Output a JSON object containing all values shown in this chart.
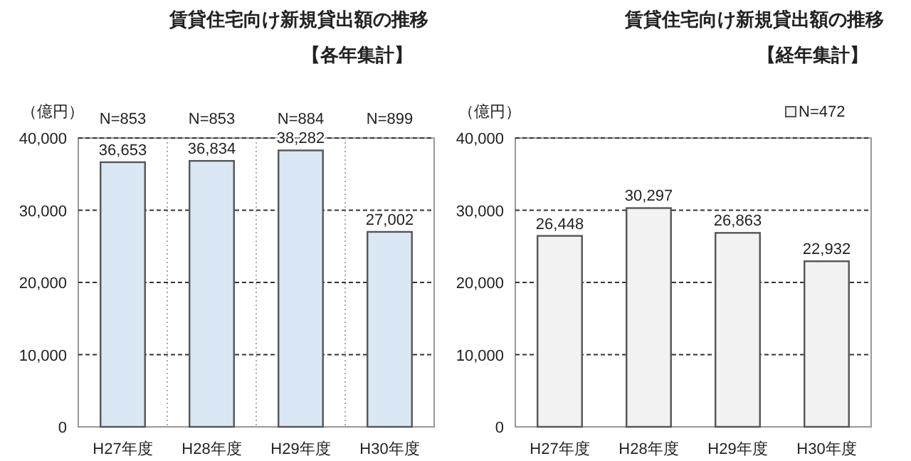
{
  "chart_data": [
    {
      "type": "bar",
      "title": "賃貸住宅向け新規貸出額の推移",
      "subtitle": "【各年集計】",
      "ylabel": "（億円）",
      "categories": [
        "H27年度",
        "H28年度",
        "H29年度",
        "H30年度"
      ],
      "series": [
        {
          "color": "#dae8f5",
          "values": [
            36653,
            36834,
            38282,
            27002
          ],
          "value_labels": [
            "36,653",
            "36,834",
            "38,282",
            "27,002"
          ]
        }
      ],
      "ylim": [
        0,
        40000
      ],
      "yticks": [
        0,
        {
          "value": 10000,
          "label": "10,000"
        },
        {
          "value": 20000,
          "label": "20,000"
        },
        {
          "value": 30000,
          "label": "30,000"
        },
        {
          "value": 40000,
          "label": "40,000"
        }
      ],
      "grid": true,
      "annotations": [
        "N=853",
        "N=853",
        "N=884",
        "N=899"
      ]
    },
    {
      "type": "bar",
      "title": "賃貸住宅向け新規貸出額の推移",
      "subtitle": "【経年集計】",
      "ylabel": "（億円）",
      "categories": [
        "H27年度",
        "H28年度",
        "H29年度",
        "H30年度"
      ],
      "series": [
        {
          "name": "N=472",
          "color": "#f2f2f2",
          "values": [
            26448,
            30297,
            26863,
            22932
          ],
          "value_labels": [
            "26,448",
            "30,297",
            "26,863",
            "22,932"
          ]
        }
      ],
      "ylim": [
        0,
        40000
      ],
      "yticks": [
        0,
        {
          "value": 10000,
          "label": "10,000"
        },
        {
          "value": 20000,
          "label": "20,000"
        },
        {
          "value": 30000,
          "label": "30,000"
        },
        {
          "value": 40000,
          "label": "40,000"
        }
      ],
      "grid": "y",
      "legend": "top right"
    }
  ]
}
